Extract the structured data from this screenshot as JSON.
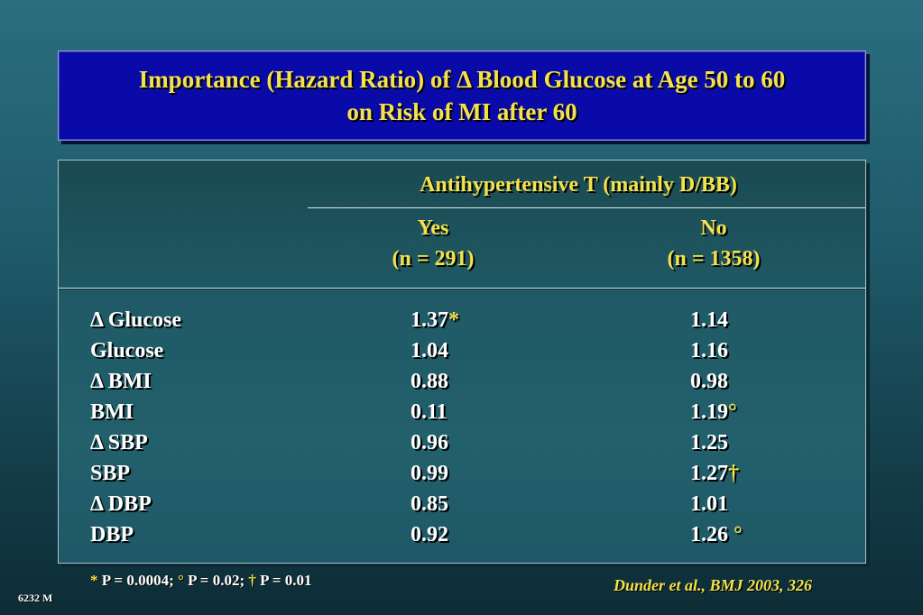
{
  "title": {
    "line1": "Importance (Hazard Ratio) of Δ Blood Glucose at Age 50 to 60",
    "line2": "on Risk of MI after 60"
  },
  "table": {
    "group_header": "Antihypertensive T (mainly D/BB)",
    "columns": [
      {
        "label": "Yes",
        "n": "(n = 291)"
      },
      {
        "label": "No",
        "n": "(n = 1358)"
      }
    ],
    "rows": [
      {
        "label": "Δ Glucose",
        "yes": "1.37",
        "yes_mark": "*",
        "no": "1.14",
        "no_mark": ""
      },
      {
        "label": "Glucose",
        "yes": "1.04",
        "yes_mark": "",
        "no": "1.16",
        "no_mark": ""
      },
      {
        "label": "Δ BMI",
        "yes": "0.88",
        "yes_mark": "",
        "no": "0.98",
        "no_mark": ""
      },
      {
        "label": "BMI",
        "yes": "0.11",
        "yes_mark": "",
        "no": "1.19",
        "no_mark": "°"
      },
      {
        "label": "Δ SBP",
        "yes": "0.96",
        "yes_mark": "",
        "no": "1.25",
        "no_mark": ""
      },
      {
        "label": "SBP",
        "yes": "0.99",
        "yes_mark": "",
        "no": "1.27",
        "no_mark": "†"
      },
      {
        "label": "Δ DBP",
        "yes": "0.85",
        "yes_mark": "",
        "no": "1.01",
        "no_mark": ""
      },
      {
        "label": "DBP",
        "yes": "0.92",
        "yes_mark": "",
        "no": "1.26",
        "no_mark": " °"
      }
    ]
  },
  "footnote": {
    "sym1": "*",
    "text1": " P = 0.0004; ",
    "sym2": "°",
    "text2": " P = 0.02; ",
    "sym3": "†",
    "text3": " P = 0.01"
  },
  "citation": "Dunder et al., BMJ 2003, 326",
  "slide_id": "6232 M",
  "colors": {
    "title_bg": "#0a0aa8",
    "title_text": "#f5e24a",
    "body_text": "#ffffff",
    "accent": "#f5e24a"
  }
}
